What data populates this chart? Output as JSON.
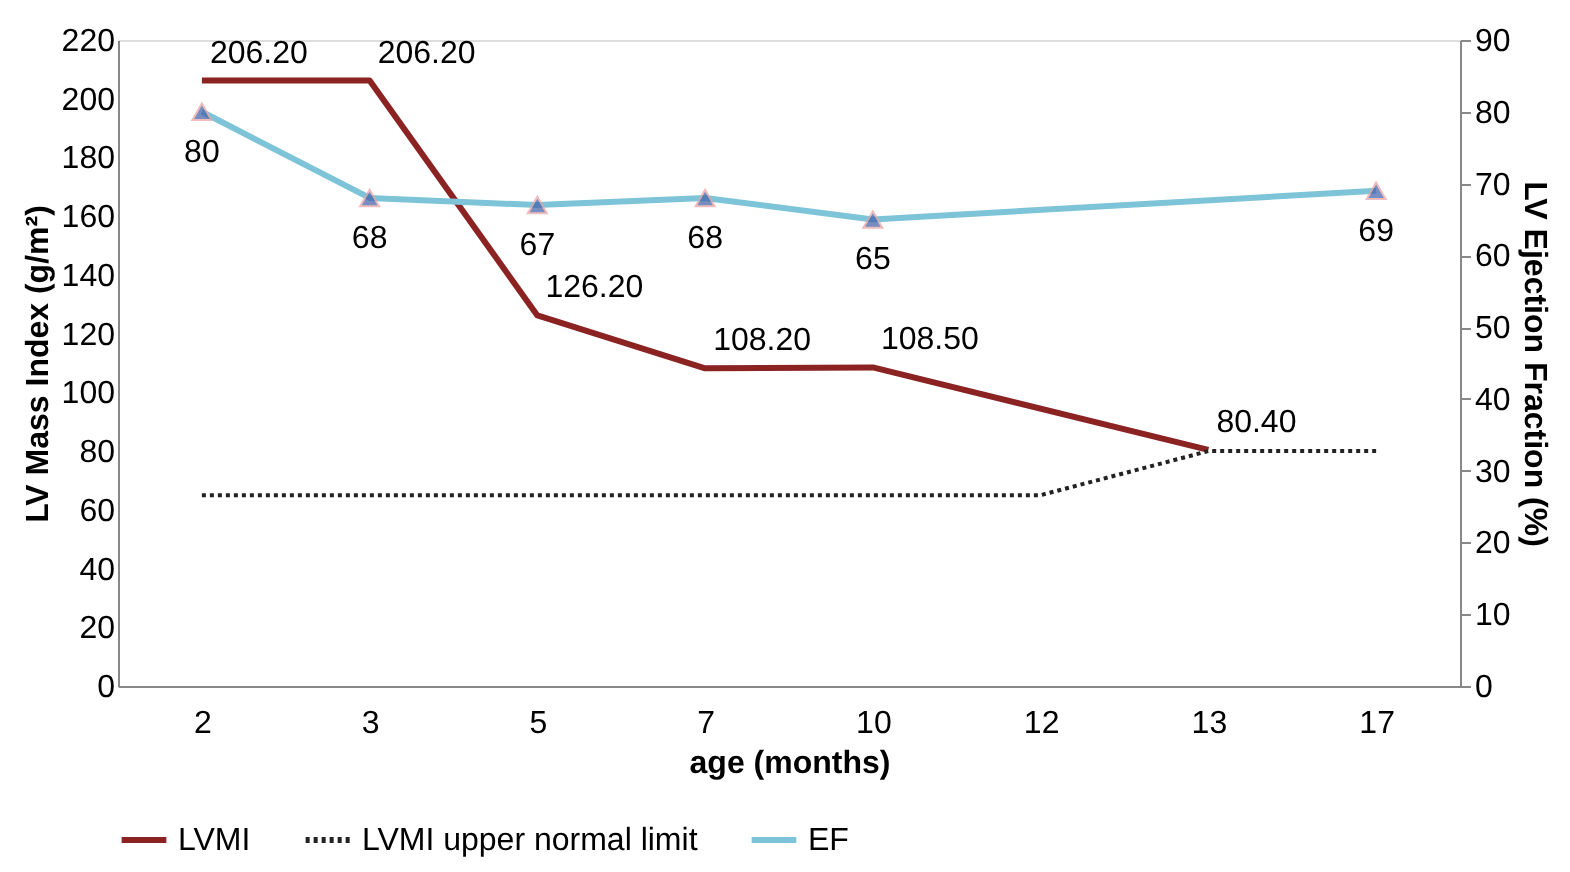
{
  "chart_data": {
    "type": "line",
    "xlabel": "age (months)",
    "ylabel": "LV Mass Index (g/m²)",
    "y2label": "LV Ejection Fraction (%)",
    "categories": [
      "2",
      "3",
      "5",
      "7",
      "10",
      "12",
      "13",
      "17"
    ],
    "series": [
      {
        "name": "LVMI",
        "color": "#8b2323",
        "line_style": "solid",
        "marker": "none",
        "values": [
          206.2,
          206.2,
          126.2,
          108.2,
          108.5,
          null,
          80.4,
          null
        ],
        "value_labels": [
          "206.20",
          "206.20",
          "126.20",
          "108.20",
          "108.50",
          null,
          "80.40",
          null
        ]
      },
      {
        "name": "LVMI upper normal limit",
        "color": "#222222",
        "line_style": "dotted",
        "marker": "none",
        "values": [
          65,
          65,
          65,
          65,
          65,
          65,
          80,
          80
        ]
      },
      {
        "name": "EF",
        "color": "#7ec4d8",
        "line_style": "solid",
        "marker": "triangle",
        "axis": "y2",
        "values": [
          80,
          68,
          67,
          68,
          65,
          null,
          null,
          69
        ],
        "value_labels": [
          "80",
          "68",
          "67",
          "68",
          "65",
          null,
          null,
          "69"
        ]
      }
    ],
    "ylim": [
      0,
      220
    ],
    "yticks": [
      0,
      20,
      40,
      60,
      80,
      100,
      120,
      140,
      160,
      180,
      200,
      220
    ],
    "y2lim": [
      0,
      90
    ],
    "y2ticks": [
      0,
      10,
      20,
      30,
      40,
      50,
      60,
      70,
      80,
      90
    ],
    "grid": false,
    "legend": "bottom"
  }
}
